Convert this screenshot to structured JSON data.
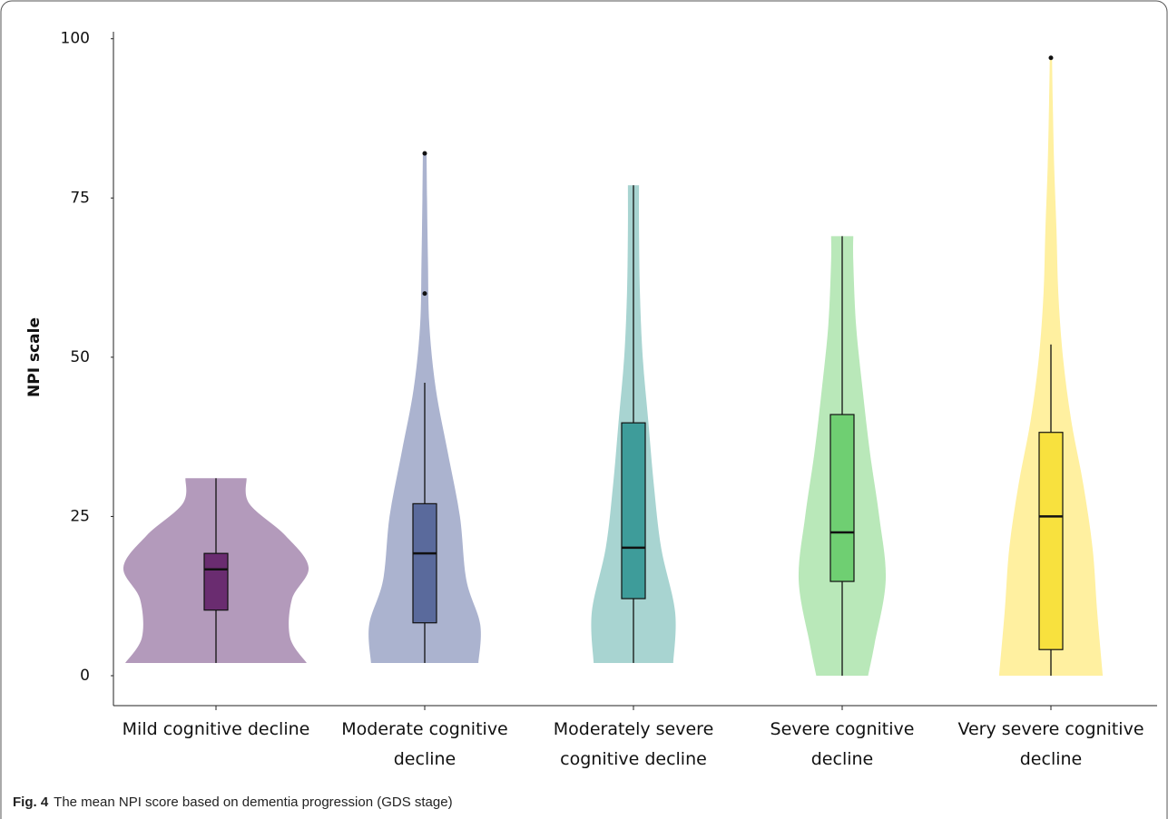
{
  "chart_data": {
    "type": "violin",
    "ylabel": "NPI scale",
    "caption_label": "Fig. 4",
    "caption": "The mean NPI score based on dementia progression (GDS stage)",
    "categories": [
      "Mild cognitive decline",
      "Moderate cognitive decline",
      "Moderately severe cognitive decline",
      "Severe cognitive decline",
      "Very severe cognitive decline"
    ],
    "ylim": [
      -4.7,
      101.1
    ],
    "yticks": [
      0,
      25,
      50,
      75,
      100
    ],
    "boxes": [
      {
        "min": 2,
        "q1": 10.3,
        "median": 16.7,
        "q3": 19.2,
        "max": 31,
        "outliers": [],
        "violin_color": "#b39abb",
        "box_color": "#6a2c70",
        "density": [
          [
            2,
            0.98
          ],
          [
            6,
            0.8
          ],
          [
            12,
            0.82
          ],
          [
            17,
            1.0
          ],
          [
            22,
            0.75
          ],
          [
            27,
            0.36
          ],
          [
            31,
            0.33
          ]
        ]
      },
      {
        "min": 2,
        "q1": 8.3,
        "median": 19.2,
        "q3": 27,
        "max": 46,
        "outliers": [
          60,
          82
        ],
        "violin_color": "#abb3cf",
        "box_color": "#5a6a9c",
        "density": [
          [
            2,
            0.58
          ],
          [
            8,
            0.6
          ],
          [
            15,
            0.45
          ],
          [
            25,
            0.38
          ],
          [
            35,
            0.25
          ],
          [
            45,
            0.12
          ],
          [
            55,
            0.05
          ],
          [
            65,
            0.035
          ],
          [
            75,
            0.025
          ],
          [
            82,
            0.02
          ]
        ]
      },
      {
        "min": 2,
        "q1": 12.1,
        "median": 20.1,
        "q3": 39.7,
        "max": 77,
        "outliers": [],
        "violin_color": "#a8d4d1",
        "box_color": "#3e9c9a",
        "density": [
          [
            2,
            0.43
          ],
          [
            10,
            0.45
          ],
          [
            20,
            0.3
          ],
          [
            30,
            0.22
          ],
          [
            40,
            0.16
          ],
          [
            50,
            0.1
          ],
          [
            60,
            0.07
          ],
          [
            70,
            0.06
          ],
          [
            77,
            0.06
          ]
        ]
      },
      {
        "min": 0,
        "q1": 14.8,
        "median": 22.5,
        "q3": 41,
        "max": 69,
        "outliers": [],
        "violin_color": "#b9e8b9",
        "box_color": "#6fcf72",
        "density": [
          [
            0,
            0.28
          ],
          [
            5,
            0.35
          ],
          [
            15,
            0.47
          ],
          [
            25,
            0.4
          ],
          [
            35,
            0.3
          ],
          [
            45,
            0.22
          ],
          [
            55,
            0.15
          ],
          [
            65,
            0.12
          ],
          [
            69,
            0.12
          ]
        ]
      },
      {
        "min": 0,
        "q1": 4.1,
        "median": 25,
        "q3": 38.2,
        "max": 52,
        "outliers": [
          97
        ],
        "violin_color": "#fff0a0",
        "box_color": "#f8e13e",
        "density": [
          [
            0,
            0.56
          ],
          [
            10,
            0.5
          ],
          [
            20,
            0.45
          ],
          [
            30,
            0.35
          ],
          [
            40,
            0.22
          ],
          [
            50,
            0.13
          ],
          [
            60,
            0.08
          ],
          [
            70,
            0.06
          ],
          [
            80,
            0.035
          ],
          [
            90,
            0.02
          ],
          [
            97,
            0.012
          ]
        ]
      }
    ]
  }
}
